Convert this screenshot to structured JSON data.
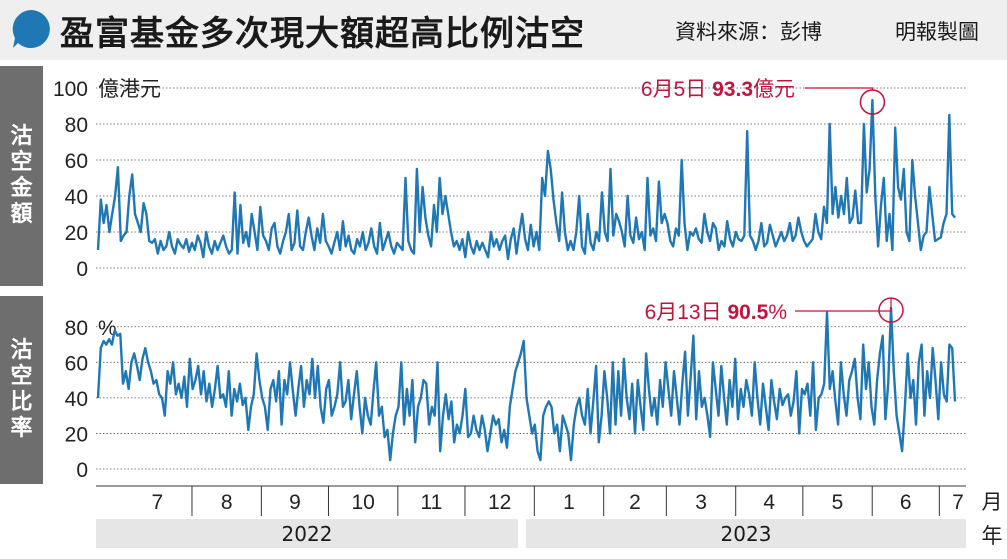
{
  "title": "盈富基金多次現大額超高比例沽空",
  "source": "資料來源：彭博",
  "credit": "明報製圖",
  "colors": {
    "line": "#1f77b4",
    "annotation": "#c0143c",
    "sidebar": "#6e6e6e",
    "header_bg": "#efefef"
  },
  "icons": {
    "header": "speech-bubble-icon"
  },
  "x_axis": {
    "months": [
      "7",
      "8",
      "9",
      "10",
      "11",
      "12",
      "1",
      "2",
      "3",
      "4",
      "5",
      "6",
      "7"
    ],
    "month_unit": "月",
    "years": [
      "2022",
      "2023"
    ],
    "year_unit": "年"
  },
  "chart_data": [
    {
      "type": "line",
      "panel_label": "沽空金額",
      "unit": "億港元",
      "ylim": [
        0,
        100
      ],
      "yticks": [
        0,
        20,
        40,
        60,
        80,
        100
      ],
      "grid": true,
      "annotation": {
        "date": "6月5日",
        "value": "93.3",
        "unit": "億元"
      },
      "x_start": "2022-06-20",
      "x_end": "2023-07-08",
      "values": [
        10,
        38,
        25,
        35,
        20,
        30,
        40,
        56,
        15,
        18,
        20,
        40,
        52,
        30,
        25,
        20,
        36,
        30,
        15,
        14,
        16,
        8,
        15,
        10,
        12,
        20,
        12,
        8,
        16,
        13,
        11,
        16,
        9,
        14,
        10,
        18,
        14,
        6,
        20,
        12,
        8,
        15,
        10,
        14,
        18,
        12,
        8,
        10,
        42,
        8,
        35,
        14,
        20,
        12,
        30,
        20,
        10,
        34,
        18,
        15,
        10,
        22,
        25,
        12,
        8,
        15,
        20,
        30,
        10,
        14,
        32,
        12,
        10,
        20,
        28,
        18,
        10,
        22,
        14,
        30,
        15,
        12,
        8,
        14,
        20,
        10,
        26,
        12,
        18,
        10,
        8,
        16,
        12,
        20,
        10,
        14,
        22,
        12,
        8,
        25,
        10,
        15,
        20,
        12,
        8,
        14,
        12,
        10,
        50,
        15,
        10,
        8,
        55,
        20,
        45,
        28,
        18,
        12,
        35,
        20,
        50,
        30,
        40,
        30,
        20,
        12,
        15,
        10,
        16,
        6,
        20,
        12,
        8,
        15,
        10,
        14,
        10,
        6,
        20,
        12,
        16,
        10,
        15,
        18,
        5,
        16,
        22,
        8,
        20,
        30,
        16,
        10,
        24,
        12,
        20,
        10,
        50,
        40,
        65,
        55,
        38,
        25,
        15,
        42,
        20,
        10,
        15,
        10,
        20,
        40,
        12,
        8,
        30,
        14,
        10,
        20,
        15,
        42,
        20,
        15,
        55,
        18,
        30,
        26,
        20,
        12,
        40,
        18,
        14,
        28,
        16,
        20,
        10,
        50,
        18,
        22,
        15,
        48,
        25,
        30,
        25,
        15,
        12,
        22,
        18,
        60,
        25,
        10,
        20,
        18,
        22,
        16,
        14,
        30,
        20,
        15,
        25,
        22,
        10,
        15,
        12,
        26,
        16,
        12,
        20,
        16,
        15,
        18,
        76,
        18,
        15,
        10,
        15,
        25,
        12,
        14,
        24,
        18,
        12,
        16,
        20,
        15,
        18,
        25,
        15,
        18,
        28,
        20,
        15,
        12,
        14,
        16,
        30,
        20,
        16,
        34,
        25,
        80,
        30,
        45,
        28,
        40,
        30,
        50,
        25,
        28,
        43,
        25,
        25,
        80,
        42,
        55,
        93.3,
        40,
        12,
        35,
        50,
        15,
        30,
        10,
        78,
        45,
        38,
        55,
        20,
        15,
        60,
        40,
        25,
        10,
        18,
        20,
        45,
        30,
        15,
        16,
        17,
        25,
        30,
        85,
        30,
        28
      ]
    },
    {
      "type": "line",
      "panel_label": "沽空比率",
      "unit": "%",
      "ylim": [
        0,
        90
      ],
      "yticks": [
        0,
        20,
        40,
        60,
        80
      ],
      "grid": true,
      "annotation": {
        "date": "6月13日",
        "value": "90.5",
        "unit": "%"
      },
      "x_start": "2022-06-20",
      "x_end": "2023-07-08",
      "values": [
        40,
        68,
        72,
        70,
        73,
        70,
        78,
        75,
        76,
        48,
        55,
        45,
        60,
        65,
        58,
        50,
        62,
        68,
        60,
        55,
        48,
        50,
        42,
        40,
        30,
        55,
        48,
        60,
        42,
        48,
        40,
        52,
        35,
        62,
        45,
        50,
        58,
        42,
        55,
        38,
        48,
        35,
        45,
        58,
        40,
        42,
        35,
        55,
        30,
        45,
        38,
        48,
        36,
        40,
        22,
        35,
        42,
        65,
        50,
        40,
        35,
        22,
        45,
        50,
        38,
        55,
        25,
        50,
        42,
        60,
        44,
        30,
        45,
        58,
        35,
        50,
        42,
        62,
        40,
        58,
        35,
        26,
        45,
        50,
        30,
        35,
        42,
        60,
        35,
        38,
        50,
        28,
        42,
        55,
        35,
        20,
        40,
        30,
        25,
        44,
        60,
        30,
        35,
        18,
        22,
        5,
        20,
        30,
        35,
        60,
        25,
        45,
        30,
        50,
        15,
        35,
        40,
        50,
        48,
        25,
        35,
        30,
        60,
        10,
        30,
        42,
        28,
        38,
        15,
        25,
        20,
        30,
        45,
        18,
        20,
        30,
        22,
        18,
        30,
        22,
        10,
        20,
        30,
        25,
        28,
        15,
        22,
        12,
        35,
        45,
        55,
        60,
        65,
        72,
        40,
        30,
        20,
        25,
        10,
        5,
        30,
        35,
        38,
        35,
        20,
        25,
        10,
        30,
        25,
        20,
        5,
        25,
        35,
        40,
        30,
        25,
        45,
        20,
        38,
        58,
        15,
        30,
        55,
        40,
        20,
        60,
        25,
        55,
        30,
        62,
        40,
        28,
        48,
        20,
        50,
        35,
        22,
        65,
        45,
        30,
        40,
        25,
        50,
        35,
        60,
        45,
        30,
        55,
        40,
        25,
        48,
        66,
        30,
        52,
        75,
        28,
        55,
        35,
        40,
        30,
        18,
        60,
        45,
        30,
        58,
        40,
        25,
        50,
        35,
        62,
        28,
        45,
        35,
        50,
        42,
        30,
        60,
        40,
        25,
        48,
        35,
        22,
        50,
        38,
        28,
        45,
        36,
        40,
        42,
        30,
        38,
        55,
        20,
        45,
        42,
        48,
        30,
        60,
        22,
        40,
        42,
        48,
        88,
        45,
        55,
        38,
        25,
        60,
        42,
        30,
        50,
        55,
        62,
        40,
        28,
        70,
        45,
        60,
        35,
        25,
        50,
        65,
        75,
        28,
        48,
        90.5,
        55,
        30,
        20,
        10,
        35,
        65,
        40,
        50,
        25,
        60,
        70,
        30,
        55,
        40,
        68,
        50,
        28,
        60,
        42,
        38,
        70,
        68,
        38
      ]
    }
  ]
}
